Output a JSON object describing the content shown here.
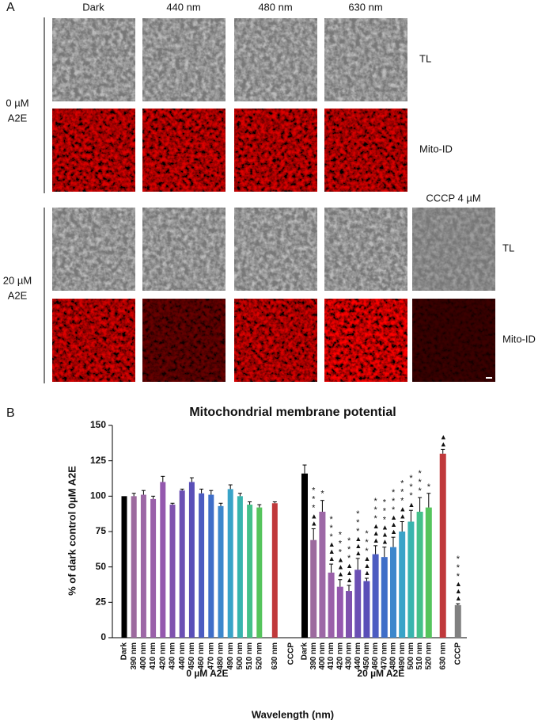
{
  "panel_a": {
    "label": "A",
    "columns": [
      "Dark",
      "440 nm",
      "480 nm",
      "630 nm"
    ],
    "rows": [
      {
        "label_lines": [
          "0 µM",
          "A2E"
        ],
        "channels": [
          "TL",
          "Mito-ID"
        ]
      },
      {
        "label_lines": [
          "20 µM",
          "A2E"
        ],
        "channels": [
          "TL",
          "Mito-ID"
        ],
        "extra_column": "CCCP 4 µM"
      }
    ]
  },
  "chart_data": {
    "type": "bar",
    "panel_label": "B",
    "title": "Mitochondrial membrane potential",
    "y_label": "% of dark control 0µM A2E",
    "x_label": "Wavelength (nm)",
    "categories": [
      "Dark",
      "390 nm",
      "400 nm",
      "410 nm",
      "420 nm",
      "430 nm",
      "440 nm",
      "450 nm",
      "460 nm",
      "470 nm",
      "480 nm",
      "490 nm",
      "500 nm",
      "510 nm",
      "520 nm",
      "630 nm",
      "CCCP"
    ],
    "colors": [
      "#000000",
      "#9c6a9e",
      "#9d68a6",
      "#9a60a9",
      "#9458ae",
      "#7f52ae",
      "#6b50b4",
      "#5a4fb8",
      "#4c5cc1",
      "#3f6ec8",
      "#3c87cc",
      "#39a3c8",
      "#38b4ae",
      "#44c08a",
      "#55c45c",
      "#c0393b",
      "#808080"
    ],
    "groups": [
      {
        "name": "0 µM A2E",
        "values": [
          100,
          100,
          101,
          98,
          110,
          94,
          104,
          110,
          102,
          101,
          93,
          105,
          100,
          94,
          92,
          95,
          null
        ],
        "errors": [
          null,
          2,
          3,
          2,
          4,
          1,
          1,
          3,
          3,
          3,
          2,
          3,
          2,
          2,
          2,
          1,
          null
        ],
        "stars": [
          null,
          null,
          null,
          null,
          null,
          null,
          null,
          null,
          null,
          null,
          null,
          null,
          null,
          null,
          null,
          null,
          null
        ],
        "triangles": [
          null,
          null,
          null,
          null,
          null,
          null,
          null,
          null,
          null,
          null,
          null,
          null,
          null,
          null,
          null,
          null,
          null
        ]
      },
      {
        "name": "20 µM A2E",
        "values": [
          116,
          69,
          89,
          46,
          36,
          33,
          48,
          40,
          59,
          57,
          64,
          75,
          82,
          89,
          92,
          130,
          23
        ],
        "errors": [
          6,
          8,
          8,
          6,
          5,
          4,
          8,
          2,
          6,
          7,
          7,
          7,
          8,
          10,
          10,
          3,
          1
        ],
        "stars": [
          null,
          "***",
          "*",
          "***",
          "***",
          "***",
          "***",
          "***",
          "***",
          "***",
          "***",
          "***",
          "***",
          "***",
          "*",
          null,
          "***"
        ],
        "triangles": [
          null,
          "▲▲",
          null,
          "▲▲▲",
          "▲▲▲",
          "▲▲▲",
          "▲▲▲",
          "▲▲▲",
          "▲▲▲",
          "▲▲▲",
          "▲▲▲",
          "▲▲",
          "▲",
          null,
          null,
          "▲▲",
          "▲▲▲"
        ]
      }
    ],
    "ylim": [
      0,
      150
    ],
    "yticks": [
      0,
      25,
      50,
      75,
      100,
      125,
      150
    ]
  }
}
